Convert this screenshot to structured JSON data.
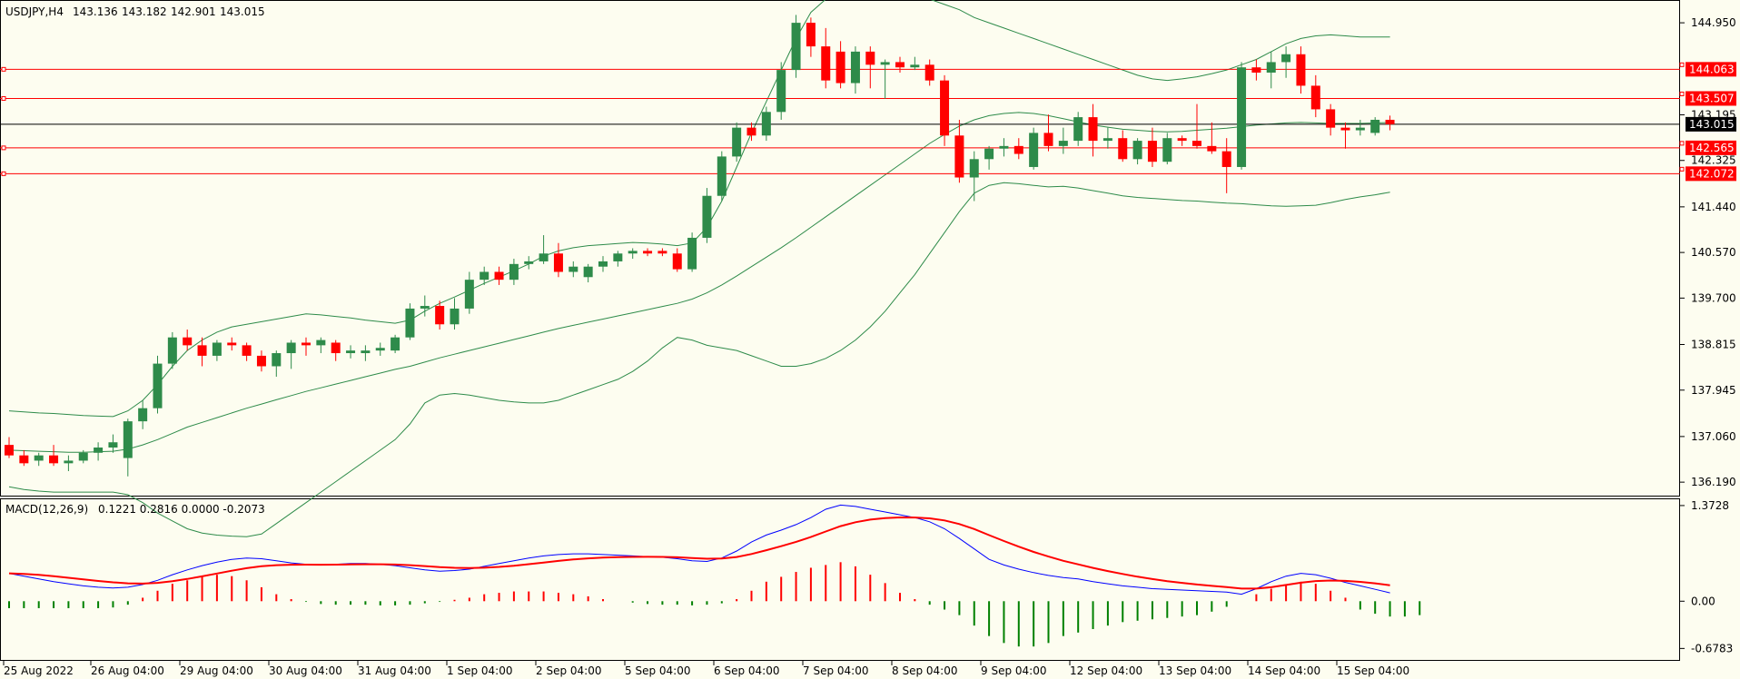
{
  "header": {
    "symbol": "USDJPY,H4",
    "open": "143.136",
    "high": "143.182",
    "low": "142.901",
    "close": "143.015"
  },
  "macd_header": {
    "label": "MACD(12,26,9)",
    "values": "0.1221 0.2816 0.0000 -0.2073"
  },
  "colors": {
    "background": "#fdfdf0",
    "bull": "#2e8b4a",
    "bear": "#ff0000",
    "bands": "#2e8b4a",
    "level_line": "#ff0000",
    "current_line": "#000000",
    "macd_line": "#0000ff",
    "signal_line": "#ff0000"
  },
  "chart_data": [
    {
      "type": "candlestick",
      "title": "USDJPY,H4",
      "y_axis_ticks": [
        "144.950",
        "143.195",
        "142.325",
        "141.440",
        "140.570",
        "139.700",
        "138.815",
        "137.945",
        "137.060",
        "136.190"
      ],
      "ylim": [
        135.95,
        145.35
      ],
      "x_axis_labels": [
        "25 Aug 2022",
        "26 Aug 04:00",
        "29 Aug 04:00",
        "30 Aug 04:00",
        "31 Aug 04:00",
        "1 Sep 04:00",
        "2 Sep 04:00",
        "5 Sep 04:00",
        "6 Sep 04:00",
        "7 Sep 04:00",
        "8 Sep 04:00",
        "9 Sep 04:00",
        "12 Sep 04:00",
        "13 Sep 04:00",
        "14 Sep 04:00",
        "15 Sep 04:00"
      ],
      "horizontal_levels": [
        {
          "label": "144.063",
          "value": 144.063
        },
        {
          "label": "143.507",
          "value": 143.507
        },
        {
          "label": "142.565",
          "value": 142.565
        },
        {
          "label": "142.072",
          "value": 142.072
        }
      ],
      "current_price": {
        "label": "143.015",
        "value": 143.015
      },
      "candles": [
        [
          136.9,
          137.05,
          136.65,
          136.7
        ],
        [
          136.7,
          136.8,
          136.5,
          136.55
        ],
        [
          136.6,
          136.75,
          136.5,
          136.7
        ],
        [
          136.7,
          136.9,
          136.5,
          136.55
        ],
        [
          136.55,
          136.7,
          136.4,
          136.6
        ],
        [
          136.6,
          136.8,
          136.55,
          136.75
        ],
        [
          136.75,
          136.95,
          136.6,
          136.85
        ],
        [
          136.85,
          137.1,
          136.75,
          136.95
        ],
        [
          136.65,
          137.4,
          136.3,
          137.35
        ],
        [
          137.35,
          137.75,
          137.2,
          137.6
        ],
        [
          137.6,
          138.6,
          137.5,
          138.45
        ],
        [
          138.45,
          139.05,
          138.35,
          138.95
        ],
        [
          138.95,
          139.1,
          138.7,
          138.8
        ],
        [
          138.8,
          138.95,
          138.4,
          138.6
        ],
        [
          138.6,
          138.9,
          138.5,
          138.85
        ],
        [
          138.85,
          138.95,
          138.7,
          138.8
        ],
        [
          138.8,
          138.85,
          138.5,
          138.6
        ],
        [
          138.6,
          138.7,
          138.3,
          138.4
        ],
        [
          138.4,
          138.7,
          138.2,
          138.65
        ],
        [
          138.65,
          138.9,
          138.35,
          138.85
        ],
        [
          138.85,
          138.95,
          138.6,
          138.8
        ],
        [
          138.8,
          138.95,
          138.65,
          138.9
        ],
        [
          138.85,
          138.9,
          138.5,
          138.65
        ],
        [
          138.65,
          138.8,
          138.55,
          138.7
        ],
        [
          138.65,
          138.8,
          138.5,
          138.7
        ],
        [
          138.7,
          138.85,
          138.6,
          138.75
        ],
        [
          138.7,
          139.0,
          138.65,
          138.95
        ],
        [
          138.95,
          139.6,
          138.9,
          139.5
        ],
        [
          139.5,
          139.75,
          139.35,
          139.55
        ],
        [
          139.55,
          139.65,
          139.1,
          139.2
        ],
        [
          139.2,
          139.7,
          139.1,
          139.5
        ],
        [
          139.5,
          140.2,
          139.4,
          140.05
        ],
        [
          140.05,
          140.3,
          139.95,
          140.2
        ],
        [
          140.2,
          140.3,
          139.95,
          140.05
        ],
        [
          140.05,
          140.45,
          139.95,
          140.35
        ],
        [
          140.35,
          140.5,
          140.25,
          140.4
        ],
        [
          140.4,
          140.9,
          140.35,
          140.55
        ],
        [
          140.55,
          140.75,
          140.1,
          140.2
        ],
        [
          140.2,
          140.4,
          140.1,
          140.3
        ],
        [
          140.1,
          140.35,
          140.0,
          140.3
        ],
        [
          140.3,
          140.5,
          140.2,
          140.4
        ],
        [
          140.4,
          140.6,
          140.3,
          140.55
        ],
        [
          140.55,
          140.65,
          140.45,
          140.6
        ],
        [
          140.6,
          140.65,
          140.5,
          140.55
        ],
        [
          140.6,
          140.65,
          140.5,
          140.55
        ],
        [
          140.55,
          140.65,
          140.2,
          140.25
        ],
        [
          140.25,
          140.95,
          140.2,
          140.85
        ],
        [
          140.85,
          141.8,
          140.75,
          141.65
        ],
        [
          141.65,
          142.5,
          141.55,
          142.4
        ],
        [
          142.4,
          143.05,
          142.3,
          142.95
        ],
        [
          142.95,
          143.05,
          142.7,
          142.8
        ],
        [
          142.8,
          143.35,
          142.7,
          143.25
        ],
        [
          143.25,
          144.2,
          143.1,
          144.05
        ],
        [
          144.05,
          145.1,
          143.9,
          144.95
        ],
        [
          144.95,
          145.05,
          144.3,
          144.5
        ],
        [
          144.5,
          144.85,
          143.7,
          143.85
        ],
        [
          144.4,
          144.6,
          143.7,
          143.8
        ],
        [
          143.8,
          144.5,
          143.6,
          144.4
        ],
        [
          144.4,
          144.5,
          143.7,
          144.15
        ],
        [
          144.15,
          144.25,
          143.5,
          144.2
        ],
        [
          144.2,
          144.3,
          144.0,
          144.1
        ],
        [
          144.1,
          144.3,
          144.05,
          144.15
        ],
        [
          144.15,
          144.25,
          143.75,
          143.85
        ],
        [
          143.85,
          143.95,
          142.6,
          142.8
        ],
        [
          142.8,
          143.1,
          141.9,
          142.0
        ],
        [
          142.0,
          142.5,
          141.55,
          142.35
        ],
        [
          142.35,
          142.6,
          142.15,
          142.55
        ],
        [
          142.55,
          142.75,
          142.4,
          142.6
        ],
        [
          142.6,
          142.75,
          142.35,
          142.45
        ],
        [
          142.2,
          142.95,
          142.15,
          142.85
        ],
        [
          142.85,
          143.2,
          142.5,
          142.6
        ],
        [
          142.6,
          142.95,
          142.45,
          142.7
        ],
        [
          142.7,
          143.25,
          142.6,
          143.15
        ],
        [
          143.15,
          143.4,
          142.4,
          142.7
        ],
        [
          142.7,
          142.95,
          142.55,
          142.75
        ],
        [
          142.75,
          142.9,
          142.3,
          142.35
        ],
        [
          142.35,
          142.75,
          142.25,
          142.7
        ],
        [
          142.7,
          142.95,
          142.2,
          142.3
        ],
        [
          142.3,
          142.85,
          142.25,
          142.75
        ],
        [
          142.75,
          142.8,
          142.6,
          142.7
        ],
        [
          142.7,
          143.4,
          142.55,
          142.6
        ],
        [
          142.6,
          143.05,
          142.45,
          142.5
        ],
        [
          142.5,
          142.75,
          141.7,
          142.2
        ],
        [
          142.2,
          144.2,
          142.15,
          144.1
        ],
        [
          144.1,
          144.25,
          143.85,
          144.0
        ],
        [
          144.0,
          144.4,
          143.7,
          144.2
        ],
        [
          144.2,
          144.5,
          143.9,
          144.35
        ],
        [
          144.35,
          144.5,
          143.6,
          143.75
        ],
        [
          143.75,
          143.95,
          143.15,
          143.3
        ],
        [
          143.3,
          143.4,
          142.8,
          142.95
        ],
        [
          142.95,
          143.05,
          142.55,
          142.9
        ],
        [
          142.9,
          143.1,
          142.8,
          142.95
        ],
        [
          142.85,
          143.15,
          142.8,
          143.1
        ],
        [
          143.1,
          143.18,
          142.9,
          143.015
        ]
      ],
      "bollinger": {
        "upper": [
          137.55,
          137.53,
          137.51,
          137.5,
          137.48,
          137.46,
          137.45,
          137.44,
          137.55,
          137.75,
          138.05,
          138.4,
          138.7,
          138.9,
          139.05,
          139.15,
          139.2,
          139.25,
          139.3,
          139.35,
          139.4,
          139.38,
          139.35,
          139.32,
          139.28,
          139.25,
          139.22,
          139.28,
          139.45,
          139.6,
          139.72,
          139.85,
          139.98,
          140.1,
          140.22,
          140.35,
          140.5,
          140.6,
          140.66,
          140.7,
          140.72,
          140.74,
          140.76,
          140.75,
          140.73,
          140.7,
          140.75,
          141.05,
          141.55,
          142.2,
          142.85,
          143.45,
          144.05,
          144.65,
          145.15,
          145.4,
          145.45,
          145.5,
          145.5,
          145.48,
          145.45,
          145.42,
          145.4,
          145.3,
          145.2,
          145.05,
          144.95,
          144.85,
          144.75,
          144.65,
          144.55,
          144.45,
          144.35,
          144.25,
          144.15,
          144.05,
          143.95,
          143.88,
          143.85,
          143.88,
          143.92,
          143.98,
          144.05,
          144.15,
          144.25,
          144.4,
          144.55,
          144.65,
          144.7,
          144.72,
          144.7,
          144.68,
          144.68,
          144.68
        ],
        "mid": [
          136.8,
          136.79,
          136.78,
          136.77,
          136.76,
          136.76,
          136.77,
          136.78,
          136.82,
          136.9,
          137.0,
          137.12,
          137.24,
          137.33,
          137.42,
          137.51,
          137.6,
          137.68,
          137.76,
          137.84,
          137.92,
          137.99,
          138.06,
          138.13,
          138.2,
          138.27,
          138.34,
          138.4,
          138.48,
          138.56,
          138.63,
          138.7,
          138.77,
          138.84,
          138.91,
          138.98,
          139.05,
          139.12,
          139.18,
          139.24,
          139.3,
          139.36,
          139.42,
          139.48,
          139.54,
          139.6,
          139.68,
          139.8,
          139.95,
          140.12,
          140.3,
          140.48,
          140.66,
          140.85,
          141.05,
          141.25,
          141.45,
          141.65,
          141.85,
          142.05,
          142.25,
          142.45,
          142.65,
          142.82,
          142.98,
          143.1,
          143.18,
          143.22,
          143.24,
          143.22,
          143.18,
          143.12,
          143.06,
          143.0,
          142.96,
          142.92,
          142.9,
          142.88,
          142.87,
          142.88,
          142.9,
          142.92,
          142.94,
          142.97,
          143.0,
          143.02,
          143.04,
          143.05,
          143.04,
          143.03,
          143.03,
          143.03,
          143.04,
          143.05
        ],
        "lower": [
          136.1,
          136.05,
          136.02,
          136.0,
          136.0,
          136.0,
          136.0,
          136.0,
          135.95,
          135.8,
          135.6,
          135.45,
          135.3,
          135.22,
          135.18,
          135.16,
          135.15,
          135.2,
          135.4,
          135.6,
          135.8,
          136.0,
          136.2,
          136.4,
          136.6,
          136.8,
          137.0,
          137.3,
          137.7,
          137.85,
          137.88,
          137.85,
          137.8,
          137.75,
          137.72,
          137.7,
          137.7,
          137.75,
          137.85,
          137.95,
          138.05,
          138.15,
          138.3,
          138.5,
          138.75,
          138.95,
          138.9,
          138.8,
          138.75,
          138.7,
          138.6,
          138.5,
          138.4,
          138.4,
          138.45,
          138.55,
          138.7,
          138.9,
          139.15,
          139.45,
          139.8,
          140.15,
          140.55,
          140.95,
          141.35,
          141.7,
          141.85,
          141.9,
          141.88,
          141.85,
          141.82,
          141.83,
          141.8,
          141.75,
          141.7,
          141.65,
          141.62,
          141.6,
          141.58,
          141.56,
          141.55,
          141.53,
          141.51,
          141.5,
          141.48,
          141.46,
          141.45,
          141.46,
          141.47,
          141.52,
          141.58,
          141.63,
          141.67,
          141.72
        ]
      }
    },
    {
      "type": "macd",
      "title": "MACD(12,26,9)",
      "y_axis_ticks": [
        "1.3728",
        "0.00",
        "-0.6783"
      ],
      "ylim": [
        -0.83,
        1.45
      ],
      "histogram": [
        -0.1,
        -0.1,
        -0.1,
        -0.1,
        -0.1,
        -0.1,
        -0.1,
        -0.09,
        -0.05,
        0.05,
        0.15,
        0.25,
        0.3,
        0.35,
        0.38,
        0.36,
        0.3,
        0.2,
        0.1,
        0.03,
        -0.01,
        -0.04,
        -0.05,
        -0.05,
        -0.05,
        -0.06,
        -0.06,
        -0.05,
        -0.03,
        -0.01,
        0.02,
        0.05,
        0.1,
        0.12,
        0.14,
        0.14,
        0.14,
        0.12,
        0.1,
        0.07,
        0.03,
        0.0,
        -0.02,
        -0.04,
        -0.05,
        -0.05,
        -0.06,
        -0.05,
        -0.03,
        0.03,
        0.15,
        0.28,
        0.35,
        0.42,
        0.48,
        0.52,
        0.56,
        0.5,
        0.38,
        0.26,
        0.12,
        0.03,
        -0.05,
        -0.12,
        -0.2,
        -0.35,
        -0.5,
        -0.6,
        -0.65,
        -0.65,
        -0.6,
        -0.5,
        -0.45,
        -0.4,
        -0.35,
        -0.3,
        -0.28,
        -0.26,
        -0.24,
        -0.22,
        -0.2,
        -0.15,
        -0.08,
        0.0,
        0.1,
        0.18,
        0.24,
        0.28,
        0.25,
        0.15,
        0.05,
        -0.12,
        -0.18,
        -0.22,
        -0.22,
        -0.2
      ],
      "macd": [
        0.4,
        0.36,
        0.32,
        0.28,
        0.25,
        0.22,
        0.2,
        0.19,
        0.2,
        0.24,
        0.3,
        0.38,
        0.45,
        0.51,
        0.56,
        0.6,
        0.62,
        0.61,
        0.58,
        0.55,
        0.53,
        0.52,
        0.53,
        0.54,
        0.54,
        0.53,
        0.51,
        0.48,
        0.45,
        0.43,
        0.44,
        0.46,
        0.5,
        0.54,
        0.58,
        0.62,
        0.65,
        0.67,
        0.68,
        0.68,
        0.67,
        0.66,
        0.65,
        0.64,
        0.63,
        0.61,
        0.58,
        0.57,
        0.62,
        0.72,
        0.85,
        0.95,
        1.02,
        1.1,
        1.2,
        1.32,
        1.38,
        1.36,
        1.32,
        1.28,
        1.24,
        1.2,
        1.14,
        1.04,
        0.9,
        0.75,
        0.6,
        0.52,
        0.46,
        0.41,
        0.37,
        0.34,
        0.32,
        0.28,
        0.25,
        0.22,
        0.2,
        0.18,
        0.17,
        0.16,
        0.15,
        0.14,
        0.13,
        0.1,
        0.18,
        0.28,
        0.36,
        0.4,
        0.38,
        0.33,
        0.27,
        0.22,
        0.17,
        0.12
      ]
    }
  ]
}
